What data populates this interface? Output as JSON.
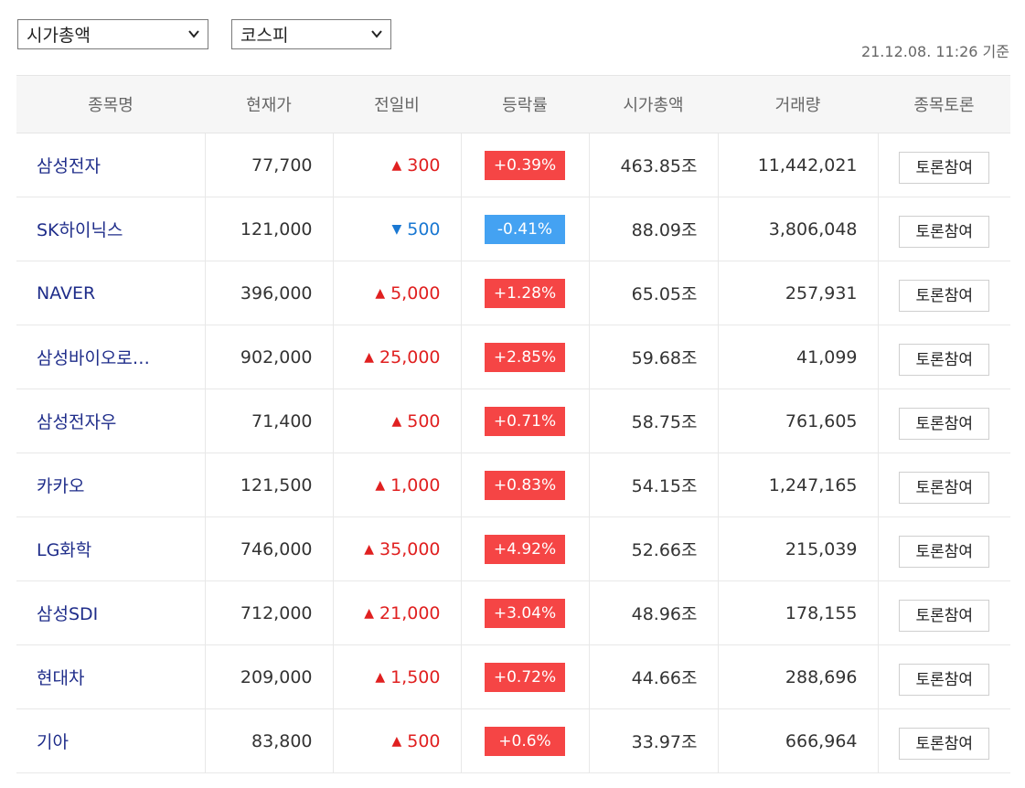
{
  "filters": {
    "sort_select": "시가총액",
    "market_select": "코스피"
  },
  "timestamp": "21.12.08. 11:26 기준",
  "columns": [
    "종목명",
    "현재가",
    "전일비",
    "등락률",
    "시가총액",
    "거래량",
    "종목토론"
  ],
  "colors": {
    "up": "#f54545",
    "down": "#44a2f2",
    "name_link": "#1f2d8a"
  },
  "rows": [
    {
      "name": "삼성전자",
      "price": "77,700",
      "direction": "up",
      "change": "300",
      "rate": "+0.39%",
      "market_cap": "463.85조",
      "volume": "11,442,021",
      "button": "토론참여"
    },
    {
      "name": "SK하이닉스",
      "price": "121,000",
      "direction": "down",
      "change": "500",
      "rate": "-0.41%",
      "market_cap": "88.09조",
      "volume": "3,806,048",
      "button": "토론참여"
    },
    {
      "name": "NAVER",
      "price": "396,000",
      "direction": "up",
      "change": "5,000",
      "rate": "+1.28%",
      "market_cap": "65.05조",
      "volume": "257,931",
      "button": "토론참여"
    },
    {
      "name": "삼성바이오로…",
      "price": "902,000",
      "direction": "up",
      "change": "25,000",
      "rate": "+2.85%",
      "market_cap": "59.68조",
      "volume": "41,099",
      "button": "토론참여"
    },
    {
      "name": "삼성전자우",
      "price": "71,400",
      "direction": "up",
      "change": "500",
      "rate": "+0.71%",
      "market_cap": "58.75조",
      "volume": "761,605",
      "button": "토론참여"
    },
    {
      "name": "카카오",
      "price": "121,500",
      "direction": "up",
      "change": "1,000",
      "rate": "+0.83%",
      "market_cap": "54.15조",
      "volume": "1,247,165",
      "button": "토론참여"
    },
    {
      "name": "LG화학",
      "price": "746,000",
      "direction": "up",
      "change": "35,000",
      "rate": "+4.92%",
      "market_cap": "52.66조",
      "volume": "215,039",
      "button": "토론참여"
    },
    {
      "name": "삼성SDI",
      "price": "712,000",
      "direction": "up",
      "change": "21,000",
      "rate": "+3.04%",
      "market_cap": "48.96조",
      "volume": "178,155",
      "button": "토론참여"
    },
    {
      "name": "현대차",
      "price": "209,000",
      "direction": "up",
      "change": "1,500",
      "rate": "+0.72%",
      "market_cap": "44.66조",
      "volume": "288,696",
      "button": "토론참여"
    },
    {
      "name": "기아",
      "price": "83,800",
      "direction": "up",
      "change": "500",
      "rate": "+0.6%",
      "market_cap": "33.97조",
      "volume": "666,964",
      "button": "토론참여"
    }
  ]
}
